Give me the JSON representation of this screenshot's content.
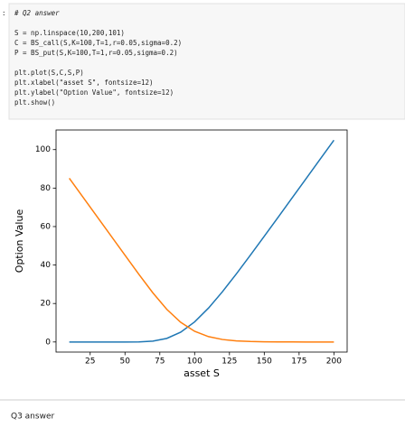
{
  "code_cell": {
    "prompt": ":",
    "blocks": [
      [
        "# Q2 answer"
      ],
      [
        "S = np.linspace(10,200,101)",
        "C = BS_call(S,K=100,T=1,r=0.05,sigma=0.2)",
        "P = BS_put(S,K=100,T=1,r=0.05,sigma=0.2)"
      ],
      [
        "plt.plot(S,C,S,P)",
        "plt.xlabel(\"asset S\", fontsize=12)",
        "plt.ylabel(\"Option Value\", fontsize=12)",
        "plt.show()"
      ]
    ]
  },
  "chart_data": {
    "type": "line",
    "xlabel": "asset S",
    "ylabel": "Option Value",
    "x": [
      10,
      50,
      60,
      70,
      80,
      90,
      100,
      110,
      120,
      130,
      140,
      150,
      160,
      170,
      180,
      190,
      200
    ],
    "series": [
      {
        "color": "#1f77b4",
        "values": [
          0,
          0,
          0.02,
          0.44,
          1.86,
          5.09,
          10.45,
          17.66,
          26.17,
          35.44,
          45.12,
          54.97,
          64.9,
          74.9,
          84.9,
          94.9,
          104.9
        ]
      },
      {
        "color": "#ff7f0e",
        "values": [
          85.12,
          45.12,
          35.14,
          25.56,
          16.98,
          10.21,
          5.57,
          2.78,
          1.29,
          0.56,
          0.24,
          0.09,
          0.04,
          0.01,
          0,
          0,
          0
        ]
      }
    ],
    "xlim": [
      0.5,
      209.5
    ],
    "ylim": [
      -5.25,
      110.2
    ],
    "xticks": [
      25,
      50,
      75,
      100,
      125,
      150,
      175,
      200
    ],
    "yticks": [
      0,
      20,
      40,
      60,
      80,
      100
    ]
  },
  "markdown": {
    "text": "Q3 answer"
  }
}
